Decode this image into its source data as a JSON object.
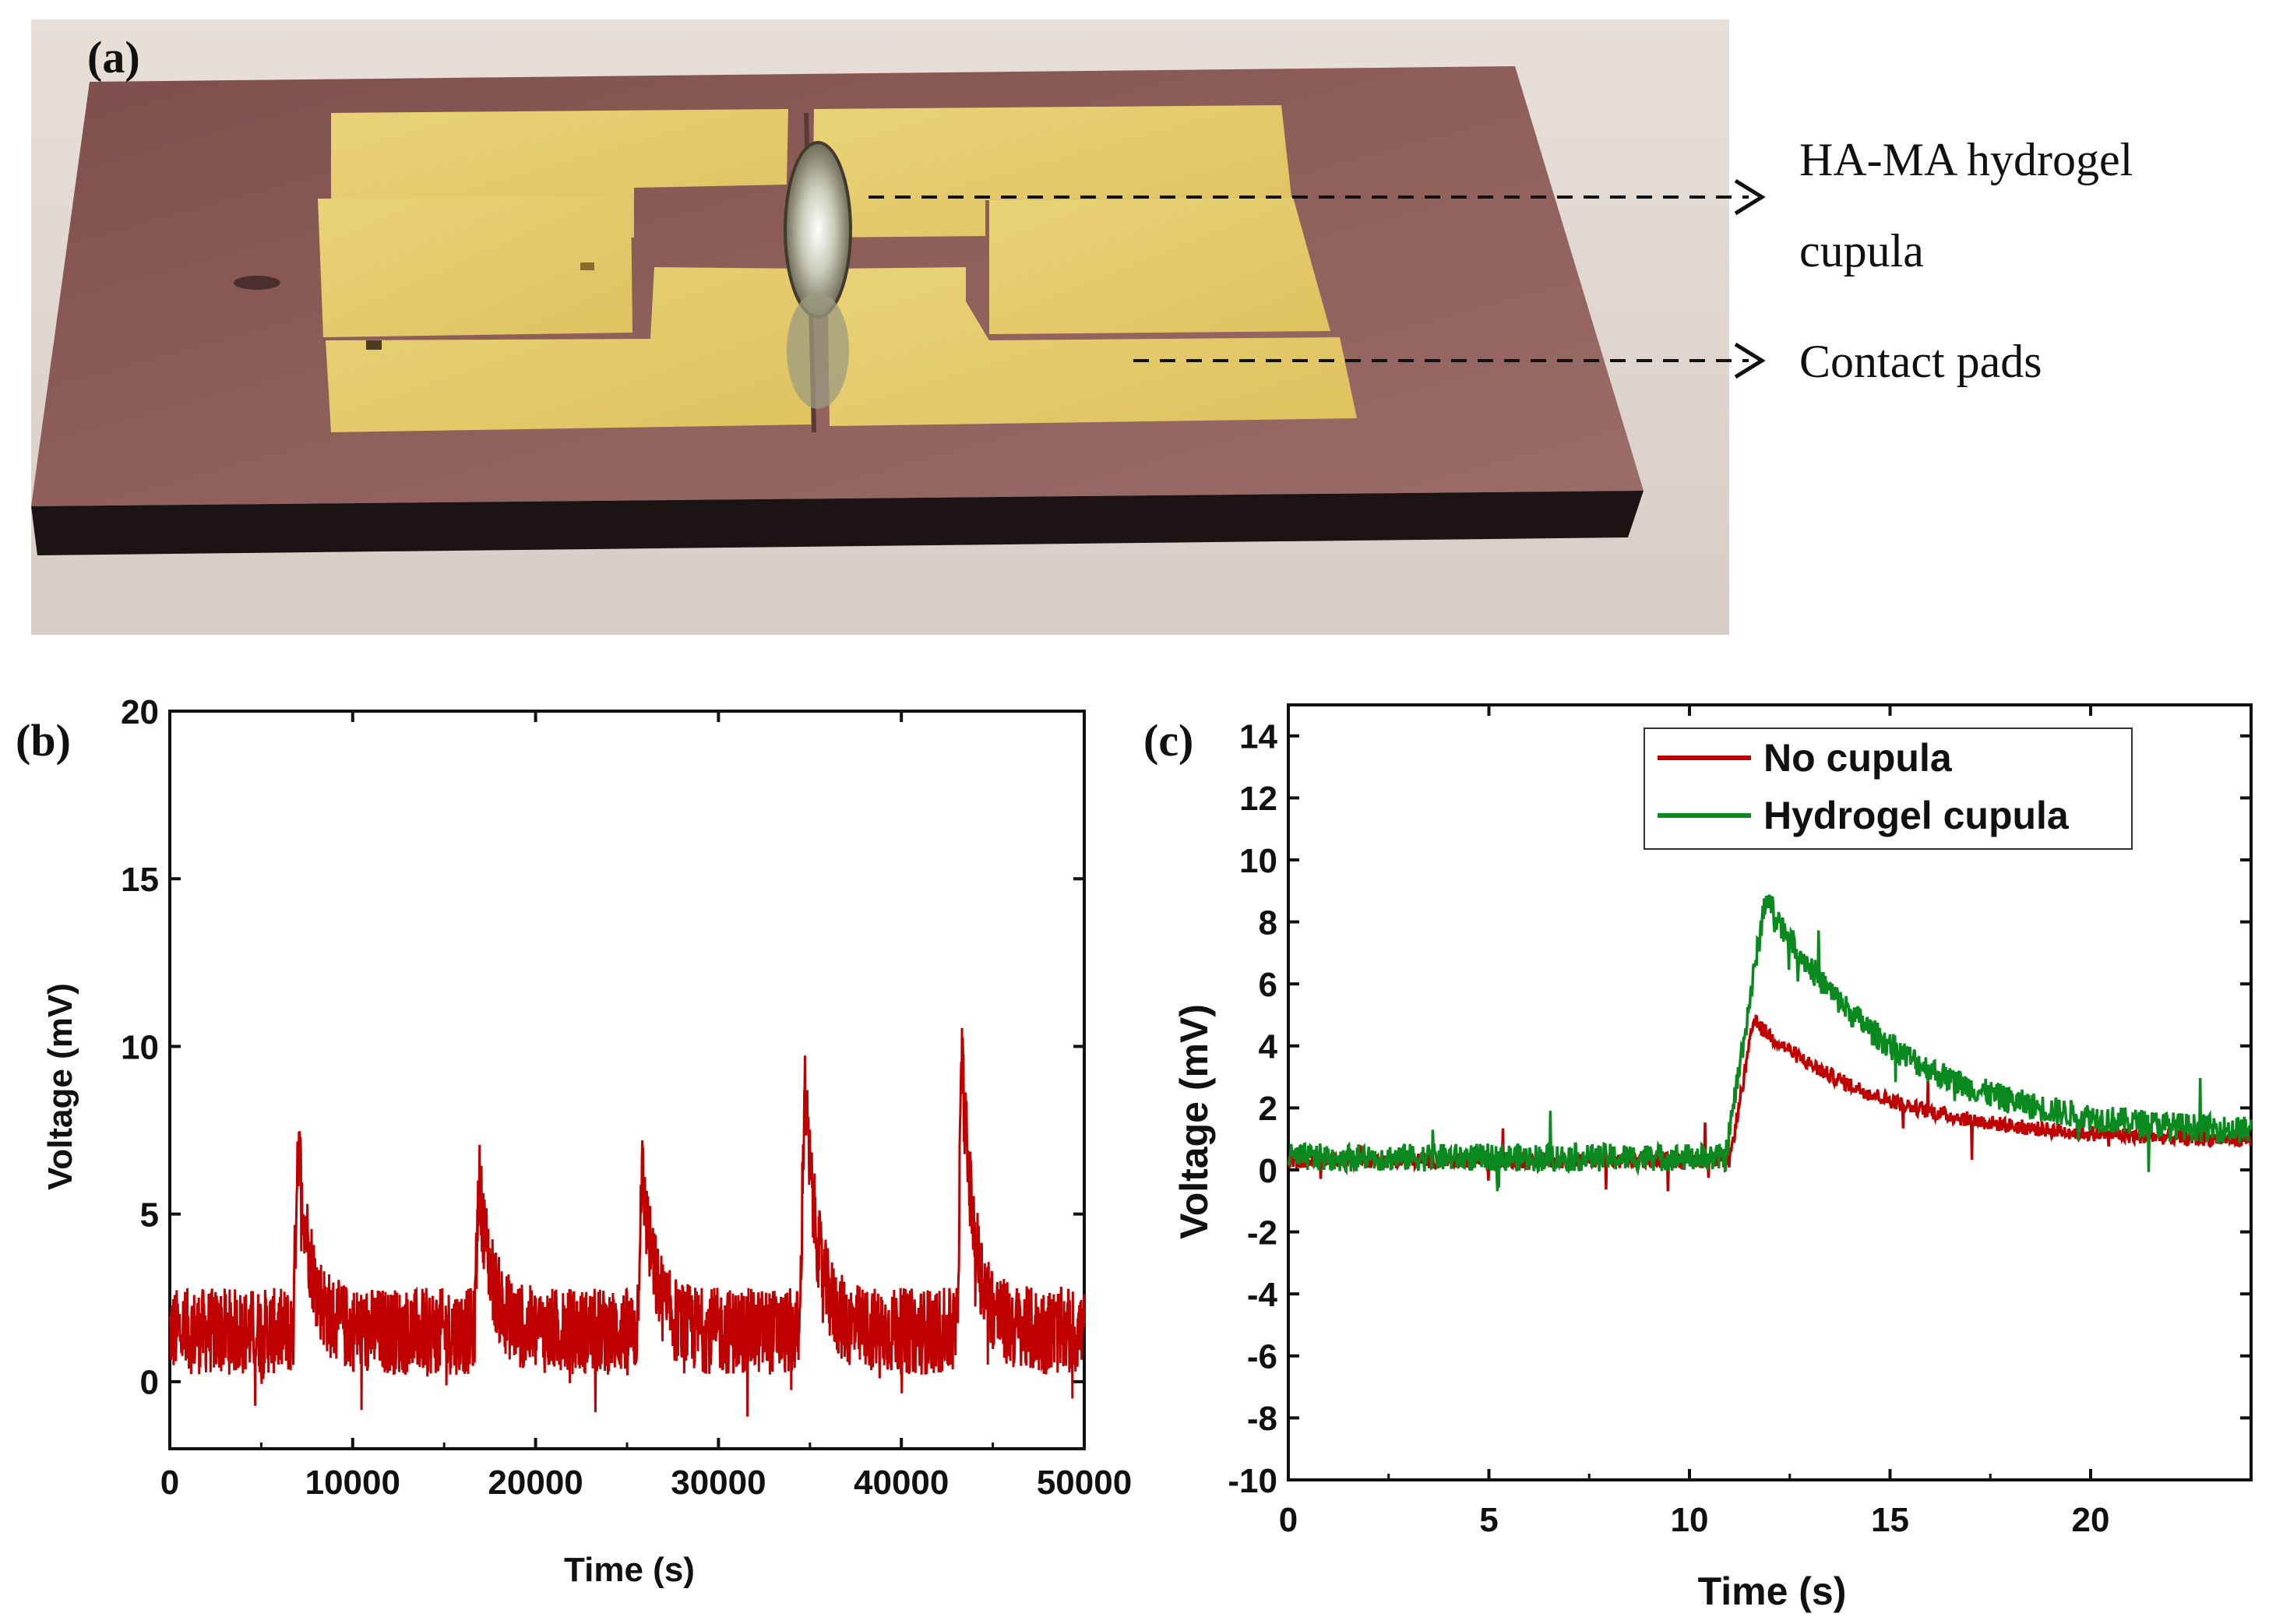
{
  "panel_a": {
    "label": "(a)",
    "annotation_cupula_line1": "HA-MA hydrogel",
    "annotation_cupula_line2": "cupula",
    "annotation_pads": "Contact pads"
  },
  "colors": {
    "red_series": "#c00000",
    "green_series": "#0a8a1e",
    "substrate": "#8c5a55",
    "gold": "#e8cf6a"
  },
  "chart_data": [
    {
      "panel": "(b)",
      "type": "line",
      "title": "",
      "xlabel": "Time (s)",
      "ylabel": "Voltage (mV)",
      "xlim": [
        0,
        50000
      ],
      "ylim": [
        -2,
        20
      ],
      "xticks": [
        0,
        10000,
        20000,
        30000,
        40000,
        50000
      ],
      "yticks": [
        0,
        5,
        10,
        15,
        20
      ],
      "series": [
        {
          "name": "Voltage",
          "color": "#c00000",
          "baseline": 1.5,
          "noise": 1.3,
          "peaks": [
            {
              "x": 7000,
              "y": 7.4
            },
            {
              "x": 16900,
              "y": 6.1
            },
            {
              "x": 25800,
              "y": 6.4
            },
            {
              "x": 34700,
              "y": 9.0
            },
            {
              "x": 43300,
              "y": 9.7
            }
          ]
        }
      ]
    },
    {
      "panel": "(c)",
      "type": "line",
      "title": "",
      "xlabel": "Time (s)",
      "ylabel": "Voltage (mV)",
      "xlim": [
        0,
        24
      ],
      "ylim": [
        -10,
        15
      ],
      "xticks": [
        0,
        5,
        10,
        15,
        20
      ],
      "yticks": [
        -10,
        -8,
        -6,
        -4,
        -2,
        0,
        2,
        4,
        6,
        8,
        10,
        12,
        14
      ],
      "legend": "top-right",
      "series": [
        {
          "name": "No cupula",
          "color": "#c00000",
          "baseline": 0.3,
          "rise_start": 11.0,
          "peak_x": 11.6,
          "peak_y": 4.8,
          "end_y": 0.9
        },
        {
          "name": "Hydrogel cupula",
          "color": "#0a8a1e",
          "baseline": 0.4,
          "rise_start": 10.9,
          "peak_x": 11.9,
          "peak_y": 8.8,
          "end_y": 1.1
        }
      ]
    }
  ]
}
